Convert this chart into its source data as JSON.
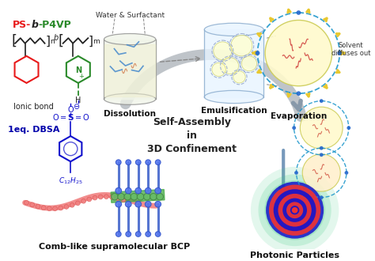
{
  "background_color": "#ffffff",
  "labels": {
    "ps_b_p4vp_ps": "PS-",
    "ps_b_p4vp_b": "b",
    "ps_b_p4vp_p4vp": "-P4VP",
    "ionic_bond": "Ionic bond",
    "dbsa": "1eq. DBSA",
    "water_surfactant": "Water & Surfactant",
    "dissolution": "Dissolution",
    "emulsification": "Emulsification",
    "evaporation": "Evaporation",
    "solvent_diffuses_1": "Solvent",
    "solvent_diffuses_2": "diffuses out",
    "self_assembly": "Self-Assembly\nin\n3D Confinement",
    "comb_like": "Comb-like supramolecular BCP",
    "photonic": "Photonic Particles",
    "c12h25": "$C_{12}H_{25}$",
    "n_label": "n",
    "m_label": "m",
    "b_label": "b"
  },
  "colors": {
    "red": "#e8191a",
    "green": "#2a8a2a",
    "blue": "#1010cc",
    "dark_blue": "#0000aa",
    "black": "#222222",
    "gray": "#aaaaaa",
    "dark_gray": "#666666",
    "arrow_gray": "#909090",
    "cyl_yellow": "#f5f5cc",
    "cyl_blue": "#d8eeff",
    "cyl_rim": "#999999",
    "droplet_yellow": "#f8f800",
    "evap_yellow": "#fffaaa",
    "evap_spike": "#e8c830",
    "cyan_dash": "#2299cc",
    "salmon": "#f08080",
    "green_bcp": "#44aa44",
    "blue_rod": "#4466cc",
    "photonic_blue": "#1515cc",
    "photonic_red": "#ee2222",
    "glow_green": "#44cc88"
  }
}
